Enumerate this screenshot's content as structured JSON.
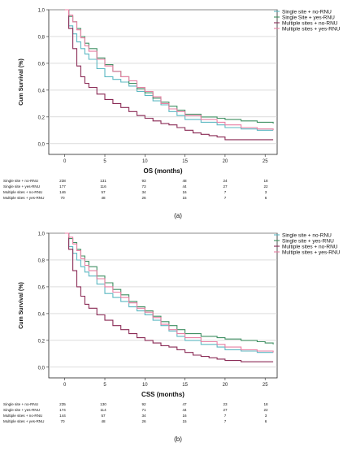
{
  "panels": [
    {
      "caption": "(a)",
      "legend_position": "top-right",
      "risk_table": {
        "rows": [
          {
            "label": "Single site + no-RNU",
            "counts": [
              "238",
              "131",
              "93",
              "48",
              "24",
              "18"
            ]
          },
          {
            "label": "Single site + yes-RNU",
            "counts": [
              "177",
              "116",
              "73",
              "44",
              "27",
              "22"
            ]
          },
          {
            "label": "Multiple sites + no-RNU",
            "counts": [
              "146",
              "57",
              "34",
              "16",
              "7",
              "3"
            ]
          },
          {
            "label": "Multiple sites + yes-RNU",
            "counts": [
              "70",
              "48",
              "26",
              "15",
              "7",
              "6"
            ]
          }
        ]
      }
    },
    {
      "caption": "(b)",
      "legend_position": "top-right",
      "risk_table": {
        "rows": [
          {
            "label": "Single site + no-RNU",
            "counts": [
              "235",
              "130",
              "92",
              "47",
              "23",
              "18"
            ]
          },
          {
            "label": "Single site + yes-RNU",
            "counts": [
              "174",
              "114",
              "71",
              "44",
              "27",
              "22"
            ]
          },
          {
            "label": "Multiple sites + no-RNU",
            "counts": [
              "144",
              "57",
              "34",
              "16",
              "7",
              "3"
            ]
          },
          {
            "label": "Multiple sites + yes-RNU",
            "counts": [
              "70",
              "48",
              "26",
              "15",
              "7",
              "6"
            ]
          }
        ]
      }
    }
  ],
  "chart_data": [
    {
      "type": "line",
      "step": true,
      "title": "",
      "xlabel": "OS (months)",
      "ylabel": "Cum Survival (%)",
      "xlim": [
        -2,
        26.5
      ],
      "ylim": [
        -0.08,
        1.0
      ],
      "xticks": [
        "0",
        "5",
        "10",
        "15",
        "20",
        "25"
      ],
      "yticks": [
        "0,0",
        "0,2",
        "0,4",
        "0,6",
        "0,8",
        "1,0"
      ],
      "grid": "horizontal",
      "legend": "top-right",
      "series": [
        {
          "name": "Single site + no-RNU",
          "color": "#5cb8c2",
          "x": [
            0,
            0.5,
            1,
            1.5,
            2,
            2.5,
            3,
            4,
            5,
            6,
            7,
            8,
            9,
            10,
            11,
            12,
            13,
            14,
            15,
            17,
            19,
            20,
            22,
            24,
            26
          ],
          "y": [
            1.0,
            0.88,
            0.82,
            0.76,
            0.71,
            0.67,
            0.63,
            0.56,
            0.5,
            0.48,
            0.46,
            0.43,
            0.39,
            0.36,
            0.32,
            0.29,
            0.24,
            0.21,
            0.18,
            0.16,
            0.14,
            0.12,
            0.11,
            0.1,
            0.1
          ]
        },
        {
          "name": "Single Site + yes-RNU",
          "color": "#3f8f62",
          "x": [
            0,
            0.5,
            1,
            1.5,
            2,
            2.5,
            3,
            4,
            5,
            6,
            7,
            8,
            9,
            10,
            11,
            12,
            13,
            14,
            15,
            17,
            19,
            20,
            22,
            24,
            25,
            26
          ],
          "y": [
            1.0,
            0.95,
            0.91,
            0.86,
            0.8,
            0.75,
            0.71,
            0.64,
            0.59,
            0.54,
            0.5,
            0.45,
            0.41,
            0.38,
            0.34,
            0.31,
            0.28,
            0.25,
            0.22,
            0.2,
            0.19,
            0.18,
            0.17,
            0.16,
            0.16,
            0.15
          ]
        },
        {
          "name": "Multiple sites + no-RNU",
          "color": "#8a2a55",
          "x": [
            0,
            0.5,
            1,
            1.5,
            2,
            2.5,
            3,
            4,
            5,
            6,
            7,
            8,
            9,
            10,
            11,
            12,
            13,
            14,
            15,
            16,
            17,
            18,
            19,
            20,
            22,
            26
          ],
          "y": [
            1.0,
            0.86,
            0.71,
            0.58,
            0.5,
            0.45,
            0.42,
            0.37,
            0.33,
            0.3,
            0.27,
            0.24,
            0.21,
            0.19,
            0.17,
            0.15,
            0.14,
            0.12,
            0.1,
            0.08,
            0.07,
            0.06,
            0.05,
            0.03,
            0.03,
            0.03
          ]
        },
        {
          "name": "Multiple sites + yes-RNU",
          "color": "#e87fa3",
          "x": [
            0,
            0.5,
            1,
            1.5,
            2,
            2.5,
            3,
            4,
            5,
            6,
            7,
            8,
            9,
            10,
            11,
            12,
            13,
            14,
            15,
            17,
            19,
            20,
            22,
            24,
            26
          ],
          "y": [
            1.0,
            0.96,
            0.91,
            0.85,
            0.79,
            0.73,
            0.69,
            0.63,
            0.58,
            0.54,
            0.5,
            0.47,
            0.42,
            0.39,
            0.35,
            0.3,
            0.26,
            0.24,
            0.21,
            0.18,
            0.16,
            0.14,
            0.12,
            0.11,
            0.1
          ]
        }
      ]
    },
    {
      "type": "line",
      "step": true,
      "title": "",
      "xlabel": "CSS (months)",
      "ylabel": "Cum Survival (%)",
      "xlim": [
        -2,
        26.5
      ],
      "ylim": [
        -0.08,
        1.0
      ],
      "xticks": [
        "0",
        "5",
        "10",
        "15",
        "20",
        "25"
      ],
      "yticks": [
        "0,0",
        "0,2",
        "0,4",
        "0,6",
        "0,8",
        "1,0"
      ],
      "grid": "horizontal",
      "legend": "top-right",
      "series": [
        {
          "name": "Single site + no-RNU",
          "color": "#5cb8c2",
          "x": [
            0,
            0.5,
            1,
            1.5,
            2,
            2.5,
            3,
            4,
            5,
            6,
            7,
            8,
            9,
            10,
            11,
            12,
            13,
            14,
            15,
            17,
            19,
            20,
            22,
            24,
            26
          ],
          "y": [
            1.0,
            0.9,
            0.85,
            0.8,
            0.75,
            0.71,
            0.68,
            0.62,
            0.55,
            0.52,
            0.49,
            0.45,
            0.42,
            0.39,
            0.35,
            0.31,
            0.27,
            0.23,
            0.2,
            0.17,
            0.15,
            0.13,
            0.12,
            0.11,
            0.11
          ]
        },
        {
          "name": "Single site + yes-RNU",
          "color": "#3f8f62",
          "x": [
            0,
            0.5,
            1,
            1.5,
            2,
            2.5,
            3,
            4,
            5,
            6,
            7,
            8,
            9,
            10,
            11,
            12,
            13,
            14,
            15,
            17,
            19,
            20,
            22,
            24,
            25,
            26
          ],
          "y": [
            1.0,
            0.96,
            0.93,
            0.88,
            0.83,
            0.79,
            0.75,
            0.68,
            0.63,
            0.58,
            0.54,
            0.49,
            0.45,
            0.42,
            0.38,
            0.34,
            0.31,
            0.28,
            0.25,
            0.23,
            0.22,
            0.21,
            0.2,
            0.19,
            0.18,
            0.17
          ]
        },
        {
          "name": "Multiple sites + no-RNU",
          "color": "#8a2a55",
          "x": [
            0,
            0.5,
            1,
            1.5,
            2,
            2.5,
            3,
            4,
            5,
            6,
            7,
            8,
            9,
            10,
            11,
            12,
            13,
            14,
            15,
            16,
            17,
            18,
            19,
            20,
            22,
            26
          ],
          "y": [
            1.0,
            0.88,
            0.72,
            0.6,
            0.53,
            0.47,
            0.44,
            0.39,
            0.35,
            0.31,
            0.28,
            0.25,
            0.22,
            0.2,
            0.18,
            0.16,
            0.15,
            0.13,
            0.11,
            0.09,
            0.08,
            0.07,
            0.06,
            0.05,
            0.04,
            0.04
          ]
        },
        {
          "name": "Multiple sites + yes-RNU",
          "color": "#e87fa3",
          "x": [
            0,
            0.5,
            1,
            1.5,
            2,
            2.5,
            3,
            4,
            5,
            6,
            7,
            8,
            9,
            10,
            11,
            12,
            13,
            14,
            15,
            17,
            19,
            20,
            22,
            24,
            26
          ],
          "y": [
            1.0,
            0.97,
            0.92,
            0.87,
            0.81,
            0.76,
            0.72,
            0.66,
            0.6,
            0.56,
            0.52,
            0.48,
            0.44,
            0.41,
            0.37,
            0.32,
            0.28,
            0.25,
            0.22,
            0.19,
            0.17,
            0.15,
            0.13,
            0.12,
            0.11
          ]
        }
      ]
    }
  ]
}
